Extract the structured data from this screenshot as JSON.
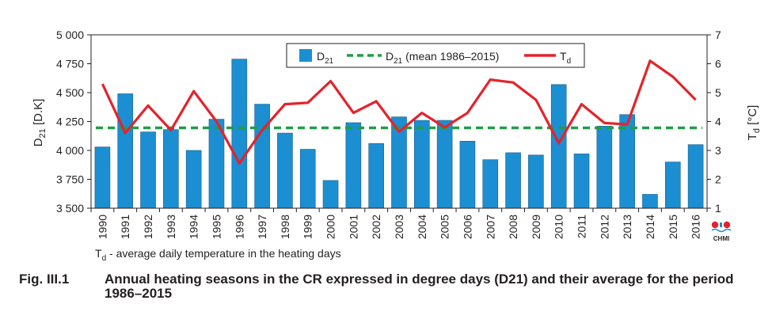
{
  "chart_data": {
    "type": "bar",
    "categories": [
      "1990",
      "1991",
      "1992",
      "1993",
      "1994",
      "1995",
      "1996",
      "1997",
      "1998",
      "1999",
      "2000",
      "2001",
      "2002",
      "2003",
      "2004",
      "2005",
      "2006",
      "2007",
      "2008",
      "2009",
      "2010",
      "2011",
      "2012",
      "2013",
      "2014",
      "2015",
      "2016"
    ],
    "series": [
      {
        "name": "D21",
        "type": "bar",
        "axis": "left",
        "color": "#1b8fd2",
        "values": [
          4030,
          4490,
          4160,
          4180,
          4000,
          4270,
          4790,
          4400,
          4150,
          4010,
          3740,
          4240,
          4060,
          4290,
          4260,
          4260,
          4080,
          3920,
          3980,
          3960,
          4570,
          3970,
          4210,
          4310,
          3620,
          3900,
          4050
        ]
      },
      {
        "name": "D21 (mean 1986–2015)",
        "type": "line",
        "style": "dashed",
        "axis": "left",
        "color": "#1f9e48",
        "values": [
          4195,
          4195,
          4195,
          4195,
          4195,
          4195,
          4195,
          4195,
          4195,
          4195,
          4195,
          4195,
          4195,
          4195,
          4195,
          4195,
          4195,
          4195,
          4195,
          4195,
          4195,
          4195,
          4195,
          4195,
          4195,
          4195,
          4195
        ]
      },
      {
        "name": "Td",
        "type": "line",
        "axis": "right",
        "color": "#e4232b",
        "values": [
          5.3,
          3.6,
          4.55,
          3.7,
          5.05,
          4.0,
          2.55,
          3.7,
          4.6,
          4.65,
          5.4,
          4.3,
          4.7,
          3.65,
          4.3,
          3.8,
          4.3,
          5.45,
          5.35,
          4.75,
          3.25,
          4.6,
          3.95,
          3.9,
          6.1,
          5.55,
          4.75
        ]
      }
    ],
    "y_left": {
      "label_main": "D",
      "label_sub": "21",
      "label_rest": " [D.K]",
      "ylim": [
        3500,
        5000
      ],
      "ticks": [
        3500,
        3750,
        4000,
        4250,
        4500,
        4750,
        5000
      ],
      "tick_labels": [
        "3 500",
        "3 750",
        "4 000",
        "4 250",
        "4 500",
        "4 750",
        "5 000"
      ]
    },
    "y_right": {
      "label_main": "T",
      "label_sub": "d",
      "label_rest": " [°C]",
      "ylim": [
        1,
        7
      ],
      "ticks": [
        1,
        2,
        3,
        4,
        5,
        6,
        7
      ],
      "tick_labels": [
        "1",
        "2",
        "3",
        "4",
        "5",
        "6",
        "7"
      ]
    },
    "legend": {
      "position": "top-center",
      "items": [
        {
          "main": "D",
          "sub": "21",
          "rest": ""
        },
        {
          "main": "D",
          "sub": "21",
          "rest": " (mean 1986–2015)"
        },
        {
          "main": "T",
          "sub": "d",
          "rest": ""
        }
      ]
    },
    "grid": false
  },
  "logo": {
    "text": "CHMI"
  },
  "note": {
    "symbol": "T",
    "sub": "d",
    "text": " - average daily temperature in the heating days"
  },
  "caption": {
    "label": "Fig. III.1",
    "text": "Annual heating seasons in the CR expressed in degree days (D21) and their average for the period 1986–2015"
  }
}
